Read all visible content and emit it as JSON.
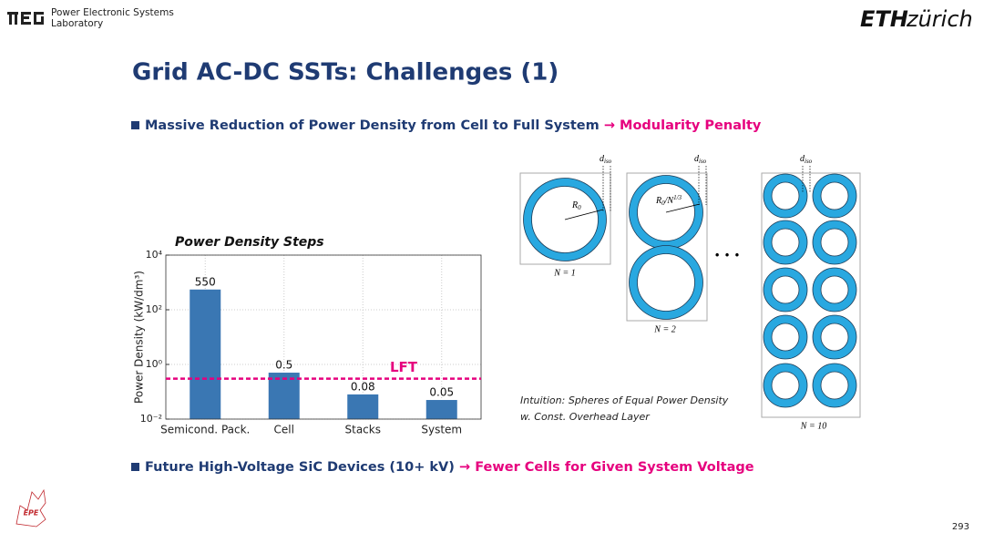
{
  "header": {
    "lab_line1": "Power Electronic Systems",
    "lab_line2": "Laboratory",
    "eth": "ETH",
    "zurich": "zürich"
  },
  "title": "Grid AC-DC SSTs: Challenges (1)",
  "bullets": [
    {
      "text": "Massive Reduction of Power Density from Cell to Full System",
      "arrow": "→",
      "highlight": "Modularity Penalty"
    },
    {
      "text": "Future High-Voltage SiC Devices (10+ kV)",
      "arrow": "→",
      "highlight": "Fewer Cells for Given System Voltage"
    }
  ],
  "chart_data": {
    "type": "bar",
    "title": "Power Density Steps",
    "y_label": "Power Density (kW/dm³)",
    "categories": [
      "Semicond. Pack.",
      "Cell",
      "Stacks",
      "System"
    ],
    "values": [
      550,
      0.5,
      0.08,
      0.05
    ],
    "color": "#3a77b3",
    "yscale": "log",
    "ylim": [
      0.01,
      10000
    ],
    "yticks": [
      {
        "value": 0.01,
        "label": "10⁻²"
      },
      {
        "value": 1,
        "label": "10⁰"
      },
      {
        "value": 100,
        "label": "10²"
      },
      {
        "value": 10000,
        "label": "10⁴"
      }
    ],
    "grid": true,
    "reference_line": {
      "label": "LFT",
      "value": 0.3,
      "color": "#e6007e"
    }
  },
  "diagram": {
    "d_iso": {
      "main": "d",
      "sub": "iso"
    },
    "r1": {
      "main": "R",
      "sub": "0"
    },
    "r2": {
      "main": "R",
      "sub": "0",
      "rest": "/N",
      "sup": "1/3"
    },
    "n1": "N = 1",
    "n2": "N = 2",
    "n10": "N = 10",
    "ellipsis": "• • •",
    "intuition_line1": "Intuition: Spheres of Equal Power Density",
    "intuition_line2": "w. Const. Overhead Layer"
  },
  "footer": {
    "logo": "EPE",
    "page": "293"
  }
}
